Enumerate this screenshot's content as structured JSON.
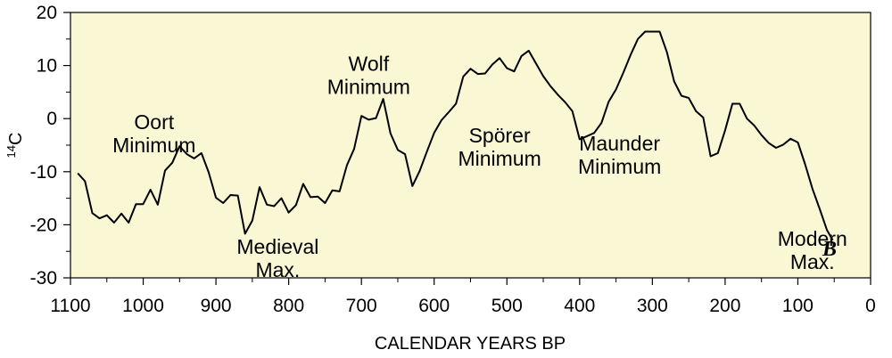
{
  "colors": {
    "plot_background": "#f9f7d4",
    "line": "#000000"
  },
  "chart_data": {
    "type": "line",
    "xlabel": "CALENDAR YEARS BP",
    "ylabel_sup": "14",
    "ylabel_base": "C",
    "panel_label": "B",
    "xlim": [
      1100,
      0
    ],
    "ylim": [
      20,
      -30
    ],
    "x_ticks": [
      1100,
      1000,
      900,
      800,
      700,
      600,
      500,
      400,
      300,
      200,
      100,
      0
    ],
    "x_tick_labels": [
      "1100",
      "1000",
      "900",
      "800",
      "700",
      "600",
      "500",
      "400",
      "300",
      "200",
      "100",
      "0"
    ],
    "y_ticks": [
      -30,
      -20,
      -10,
      0,
      10,
      20
    ],
    "y_tick_labels": [
      "-30",
      "-20",
      "-10",
      "0",
      "10",
      "20"
    ],
    "grid": false,
    "annotations": [
      {
        "id": "oort",
        "lines": [
          "Oort",
          "Minimum"
        ],
        "x": 985,
        "y": -2
      },
      {
        "id": "medieval",
        "lines": [
          "Medieval",
          "Max."
        ],
        "x": 815,
        "y": -25.5
      },
      {
        "id": "wolf",
        "lines": [
          "Wolf",
          "Minimum"
        ],
        "x": 690,
        "y": 9
      },
      {
        "id": "sporer",
        "lines": [
          "Spörer",
          "Minimum"
        ],
        "x": 510,
        "y": -4.5
      },
      {
        "id": "maunder",
        "lines": [
          "Maunder",
          "Minimum"
        ],
        "x": 345,
        "y": -6
      },
      {
        "id": "modern",
        "lines": [
          "Modern",
          "Max."
        ],
        "x": 80,
        "y": -24
      }
    ],
    "series": [
      {
        "x": [
          1090,
          1080,
          1070,
          1060,
          1050,
          1040,
          1030,
          1020,
          1010,
          1000,
          990,
          980,
          970,
          960,
          950,
          940,
          930,
          920,
          910,
          900,
          890,
          880,
          870,
          860,
          850,
          840,
          830,
          820,
          810,
          800,
          790,
          780,
          770,
          760,
          750,
          740,
          730,
          720,
          710,
          700,
          690,
          680,
          670,
          660,
          650,
          640,
          630,
          620,
          610,
          600,
          590,
          580,
          570,
          560,
          550,
          540,
          530,
          520,
          510,
          500,
          490,
          480,
          470,
          460,
          450,
          440,
          430,
          420,
          410,
          400,
          390,
          380,
          370,
          360,
          350,
          340,
          330,
          320,
          310,
          300,
          290,
          280,
          270,
          260,
          250,
          240,
          230,
          220,
          210,
          200,
          190,
          180,
          170,
          160,
          150,
          140,
          130,
          120,
          110,
          100,
          90,
          80,
          70,
          60,
          52
        ],
        "y": [
          -10.3,
          -11.8,
          -17.8,
          -18.8,
          -18.2,
          -19.6,
          -17.9,
          -19.6,
          -16.1,
          -16.1,
          -13.4,
          -16.2,
          -9.8,
          -8.3,
          -5.2,
          -6.7,
          -7.5,
          -6.5,
          -10.1,
          -14.9,
          -15.9,
          -14.4,
          -14.5,
          -21.7,
          -19.2,
          -12.9,
          -16.2,
          -16.5,
          -15.0,
          -17.7,
          -16.3,
          -12.3,
          -14.8,
          -14.7,
          -15.9,
          -13.5,
          -13.7,
          -8.8,
          -5.7,
          0.5,
          -0.2,
          0.1,
          3.7,
          -2.8,
          -5.9,
          -6.7,
          -12.7,
          -9.9,
          -6.2,
          -2.7,
          -0.3,
          1.2,
          2.8,
          7.9,
          9.4,
          8.4,
          8.5,
          10.2,
          11.4,
          9.5,
          8.9,
          11.8,
          12.8,
          10.4,
          8.0,
          6.1,
          4.5,
          3.1,
          1.4,
          -3.9,
          -3.3,
          -2.7,
          -0.8,
          3.2,
          5.5,
          8.6,
          12.0,
          15.0,
          16.4,
          16.4,
          16.4,
          12.5,
          7.0,
          4.3,
          3.9,
          1.4,
          0.2,
          -7.1,
          -6.5,
          -2.2,
          2.8,
          2.8,
          0.0,
          -1.3,
          -3.1,
          -4.6,
          -5.5,
          -4.9,
          -3.8,
          -4.5,
          -8.6,
          -13.2,
          -17.0,
          -21.0,
          -22.9
        ]
      }
    ]
  }
}
